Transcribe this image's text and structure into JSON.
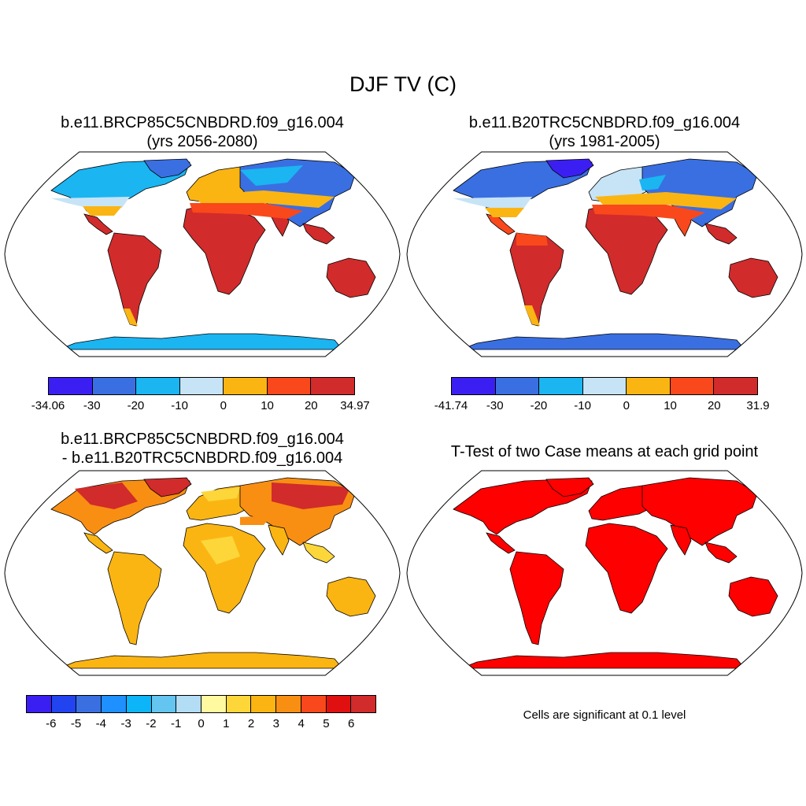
{
  "title": "DJF TV (C)",
  "panels": [
    {
      "title_line1": "b.e11.BRCP85C5CNBDRD.f09_g16.004",
      "title_line2": "(yrs 2056-2080)",
      "colorbar": {
        "colors": [
          "#3b1ff2",
          "#3a6fe2",
          "#1bb5f2",
          "#c7e4f6",
          "#fbb512",
          "#f9481c",
          "#d12b2b"
        ],
        "tick_labels": [
          "-34.06",
          "-30",
          "-20",
          "-10",
          "0",
          "10",
          "20",
          "34.97"
        ]
      }
    },
    {
      "title_line1": "b.e11.B20TRC5CNBDRD.f09_g16.004",
      "title_line2": "(yrs 1981-2005)",
      "colorbar": {
        "colors": [
          "#3b1ff2",
          "#3a6fe2",
          "#1bb5f2",
          "#c7e4f6",
          "#fbb512",
          "#f9481c",
          "#d12b2b"
        ],
        "tick_labels": [
          "-41.74",
          "-30",
          "-20",
          "-10",
          "0",
          "10",
          "20",
          "31.9"
        ]
      }
    },
    {
      "title_line1": "b.e11.BRCP85C5CNBDRD.f09_g16.004",
      "title_line2": "- b.e11.B20TRC5CNBDRD.f09_g16.004",
      "colorbar": {
        "colors": [
          "#3b1ff2",
          "#2244f0",
          "#3a6fe2",
          "#1e90ff",
          "#0cb4f8",
          "#63c5f0",
          "#b3dcf5",
          "#fffaa0",
          "#fdd63a",
          "#fbb512",
          "#f98f12",
          "#f9481c",
          "#e01010",
          "#d12b2b"
        ],
        "tick_labels": [
          "-6",
          "-5",
          "-4",
          "-3",
          "-2",
          "-1",
          "0",
          "1",
          "2",
          "3",
          "4",
          "5",
          "6"
        ]
      }
    },
    {
      "title_line1": "T-Test of two Case means at each grid point",
      "note": "Cells are significant at 0.1 level"
    }
  ]
}
